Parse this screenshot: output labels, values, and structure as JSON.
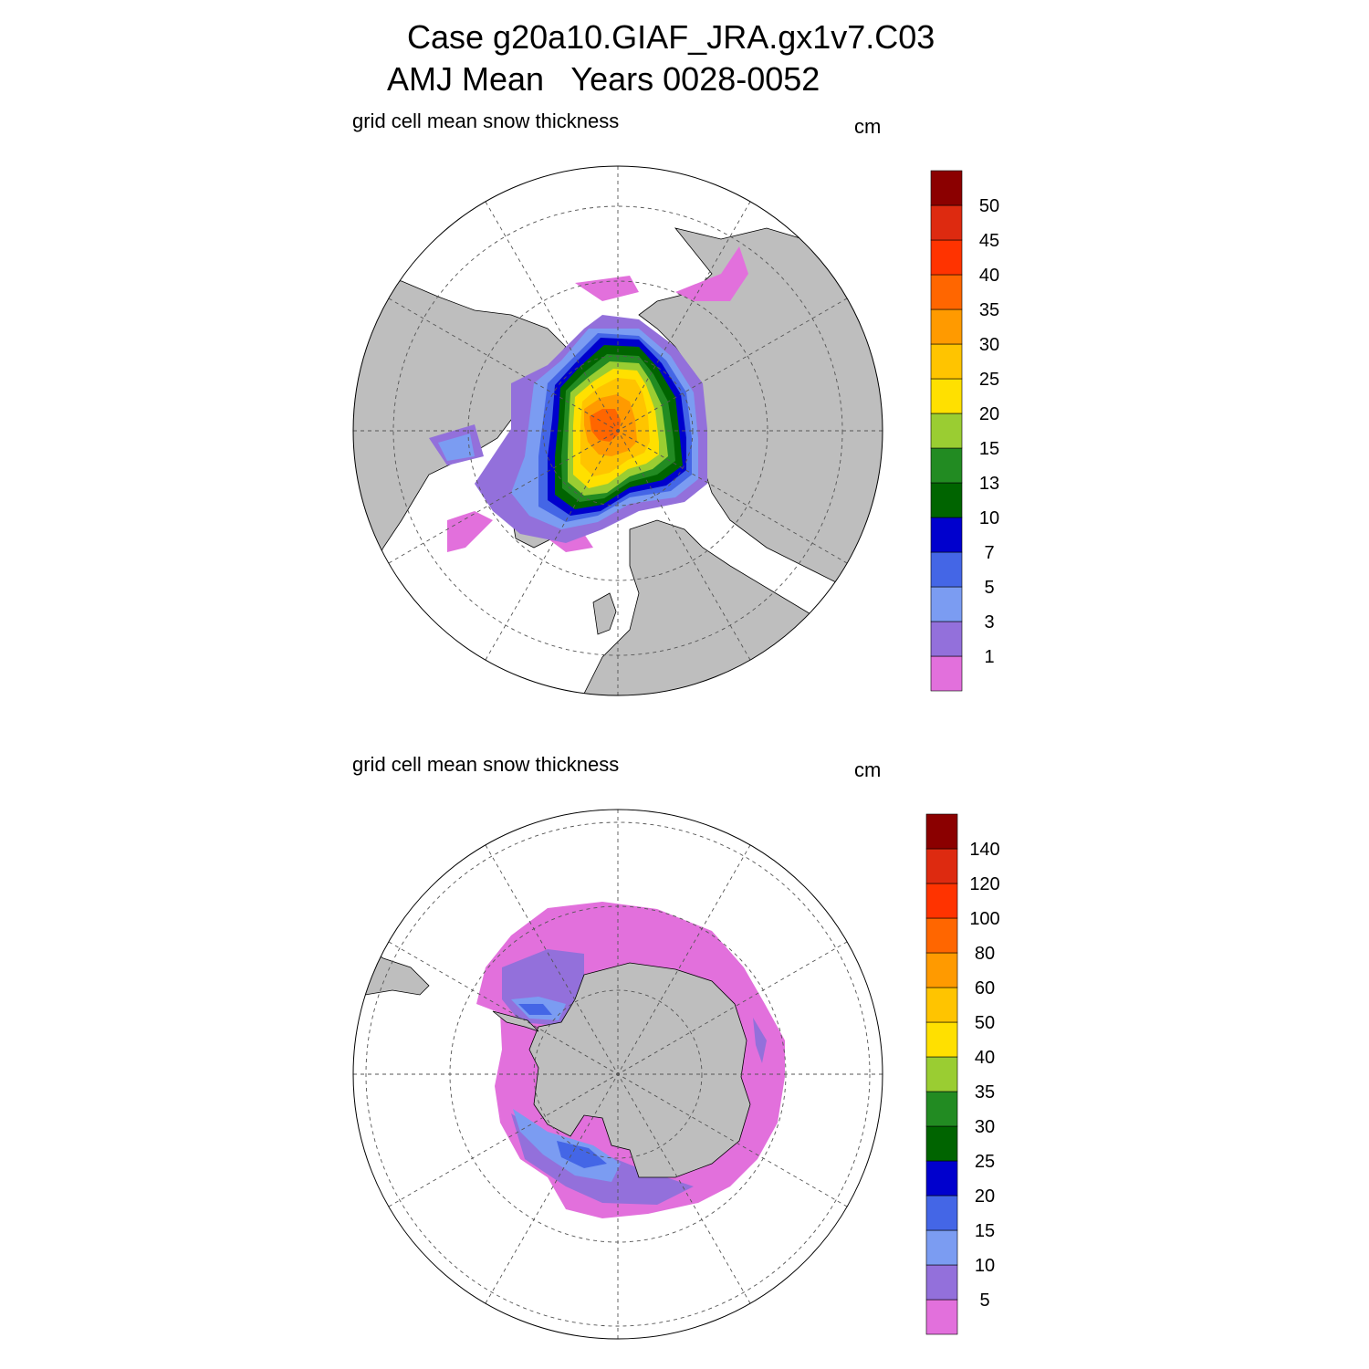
{
  "titles": {
    "line1": "Case g20a10.GIAF_JRA.gx1v7.C03",
    "line2": "AMJ Mean   Years 0028-0052"
  },
  "panels": [
    {
      "hemisphere": "north",
      "left_label": "grid cell mean snow thickness",
      "right_label": "cm",
      "colorbar": {
        "levels": [
          "1",
          "3",
          "5",
          "7",
          "10",
          "13",
          "15",
          "20",
          "25",
          "30",
          "35",
          "40",
          "45",
          "50"
        ],
        "colors": [
          "#e270dc",
          "#9370db",
          "#7b9cf2",
          "#4466e6",
          "#0000cd",
          "#006400",
          "#228b22",
          "#9acd32",
          "#ffe000",
          "#ffc400",
          "#ff9a00",
          "#ff6600",
          "#ff3300",
          "#dd2a10",
          "#8b0000"
        ]
      }
    },
    {
      "hemisphere": "south",
      "left_label": "grid cell mean snow thickness",
      "right_label": "cm",
      "colorbar": {
        "levels": [
          "5",
          "10",
          "15",
          "20",
          "25",
          "30",
          "35",
          "40",
          "50",
          "60",
          "80",
          "100",
          "120",
          "140"
        ],
        "colors": [
          "#e270dc",
          "#9370db",
          "#7b9cf2",
          "#4466e6",
          "#0000cd",
          "#006400",
          "#228b22",
          "#9acd32",
          "#ffe000",
          "#ffc400",
          "#ff9a00",
          "#ff6600",
          "#ff3300",
          "#dd2a10",
          "#8b0000"
        ]
      }
    }
  ],
  "colors": {
    "land": "#bebebe",
    "grid": "#555555"
  }
}
